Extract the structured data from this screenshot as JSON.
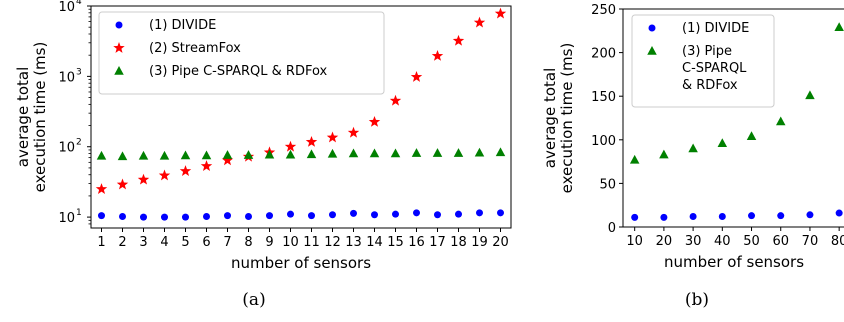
{
  "captions": [
    "(a)",
    "(b)"
  ],
  "chart_data": [
    {
      "type": "scatter",
      "yscale": "log",
      "xlabel": "number of sensors",
      "ylabel_lines": [
        "average total",
        "execution time (ms)"
      ],
      "xlim": [
        0.5,
        20.5
      ],
      "ylim": [
        7,
        10000
      ],
      "xticks": [
        1,
        2,
        3,
        4,
        5,
        6,
        7,
        8,
        9,
        10,
        11,
        12,
        13,
        14,
        15,
        16,
        17,
        18,
        19,
        20
      ],
      "yticks": [
        10,
        100,
        1000,
        10000
      ],
      "ytick_labels": [
        [
          "10",
          "1"
        ],
        [
          "10",
          "2"
        ],
        [
          "10",
          "3"
        ],
        [
          "10",
          "4"
        ]
      ],
      "legend_position": "upper-left",
      "series": [
        {
          "name_lines": [
            "(1) DIVIDE"
          ],
          "marker": "circle",
          "color": "#0000ff",
          "x": [
            1,
            2,
            3,
            4,
            5,
            6,
            7,
            8,
            9,
            10,
            11,
            12,
            13,
            14,
            15,
            16,
            17,
            18,
            19,
            20
          ],
          "y": [
            10.5,
            10.2,
            10.0,
            10.0,
            10.0,
            10.2,
            10.5,
            10.2,
            10.5,
            11.0,
            10.5,
            10.8,
            11.3,
            10.8,
            11.0,
            11.5,
            10.8,
            11.0,
            11.5,
            11.5
          ]
        },
        {
          "name_lines": [
            "(2) StreamFox"
          ],
          "marker": "star",
          "color": "#ff0000",
          "x": [
            1,
            2,
            3,
            4,
            5,
            6,
            7,
            8,
            9,
            10,
            11,
            12,
            13,
            14,
            15,
            16,
            17,
            18,
            19,
            20
          ],
          "y": [
            25,
            29,
            34,
            39,
            45,
            53,
            64,
            72,
            83,
            100,
            117,
            135,
            158,
            225,
            450,
            980,
            1950,
            3200,
            5800,
            7800
          ]
        },
        {
          "name_lines": [
            "(3) Pipe C-SPARQL & RDFox"
          ],
          "marker": "triangle",
          "color": "#008000",
          "x": [
            1,
            2,
            3,
            4,
            5,
            6,
            7,
            8,
            9,
            10,
            11,
            12,
            13,
            14,
            15,
            16,
            17,
            18,
            19,
            20
          ],
          "y": [
            74,
            73,
            74,
            74,
            75,
            75,
            76,
            76,
            77,
            77,
            78,
            79,
            80,
            80,
            80,
            81,
            81,
            81,
            82,
            83
          ]
        }
      ]
    },
    {
      "type": "scatter",
      "yscale": "linear",
      "xlabel": "number of sensors",
      "ylabel_lines": [
        "average total",
        "execution time (ms)"
      ],
      "xlim": [
        6,
        82
      ],
      "ylim": [
        0,
        250
      ],
      "xticks": [
        10,
        20,
        30,
        40,
        50,
        60,
        70,
        80
      ],
      "xtick_labels": [
        "10",
        "20",
        "30",
        "40",
        "50",
        "60",
        "70",
        "80"
      ],
      "yticks": [
        0,
        50,
        100,
        150,
        200,
        250
      ],
      "ytick_labels": [
        "0",
        "50",
        "100",
        "150",
        "200",
        "250"
      ],
      "legend_position": "upper-left",
      "series": [
        {
          "name_lines": [
            "(1) DIVIDE"
          ],
          "marker": "circle",
          "color": "#0000ff",
          "x": [
            10,
            20,
            30,
            40,
            50,
            60,
            70,
            80
          ],
          "y": [
            11,
            11,
            12,
            12,
            13,
            13,
            14,
            16
          ]
        },
        {
          "name_lines": [
            "(3) Pipe",
            "C-SPARQL",
            "& RDFox"
          ],
          "marker": "triangle",
          "color": "#008000",
          "x": [
            10,
            20,
            30,
            40,
            50,
            60,
            70,
            80
          ],
          "y": [
            77,
            83,
            90,
            96,
            104,
            121,
            151,
            229
          ]
        }
      ]
    }
  ]
}
